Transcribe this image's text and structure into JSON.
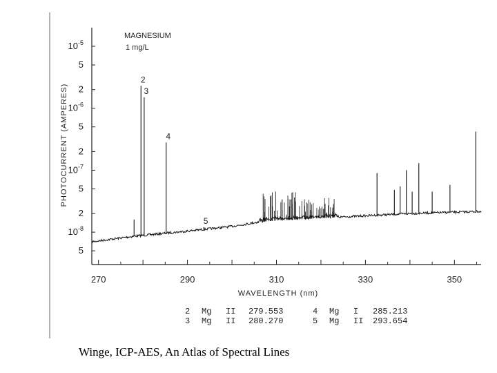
{
  "caption": "Winge, ICP-AES, An Atlas of Spectral Lines",
  "chart_data": {
    "type": "line",
    "title": "",
    "annotation": [
      "MAGNESIUM",
      "1 mg/L"
    ],
    "xlabel": "WAVELENGTH (nm)",
    "ylabel": "PHOTOCURRENT (AMPERES)",
    "xlim": [
      268.5,
      356
    ],
    "ylim": [
      3e-09,
      2e-05
    ],
    "yscale": "log",
    "x_ticks": [
      270,
      290,
      310,
      330,
      350
    ],
    "y_tick_labels": [
      {
        "value": 1e-05,
        "base": "10",
        "exp": "-5"
      },
      {
        "value": 5e-06,
        "base": "5",
        "exp": ""
      },
      {
        "value": 2e-06,
        "base": "2",
        "exp": ""
      },
      {
        "value": 1e-06,
        "base": "10",
        "exp": "-6"
      },
      {
        "value": 5e-07,
        "base": "5",
        "exp": ""
      },
      {
        "value": 2e-07,
        "base": "2",
        "exp": ""
      },
      {
        "value": 1e-07,
        "base": "10",
        "exp": "-7"
      },
      {
        "value": 5e-08,
        "base": "5",
        "exp": ""
      },
      {
        "value": 2e-08,
        "base": "2",
        "exp": ""
      },
      {
        "value": 1e-08,
        "base": "10",
        "exp": "-8"
      },
      {
        "value": 5e-09,
        "base": "5",
        "exp": ""
      }
    ],
    "background": [
      [
        268.5,
        7e-09
      ],
      [
        278,
        8.6e-09
      ],
      [
        290,
        1.04e-08
      ],
      [
        300,
        1.24e-08
      ],
      [
        306,
        1.46e-08
      ],
      [
        310,
        1.54e-08
      ],
      [
        320,
        1.68e-08
      ],
      [
        330,
        1.84e-08
      ],
      [
        340,
        2e-08
      ],
      [
        350,
        2.1e-08
      ],
      [
        356,
        2.16e-08
      ]
    ],
    "peaks": [
      {
        "x": 278.0,
        "y": 1.6e-08
      },
      {
        "x": 279.553,
        "y": 2.3e-06,
        "label": "2"
      },
      {
        "x": 280.27,
        "y": 1.5e-06,
        "label": "3"
      },
      {
        "x": 285.213,
        "y": 2.8e-07,
        "label": "4"
      },
      {
        "x": 293.654,
        "y": 1.2e-08,
        "label": "5"
      },
      {
        "x": 332.6,
        "y": 9e-08
      },
      {
        "x": 336.5,
        "y": 4.8e-08
      },
      {
        "x": 337.8,
        "y": 5.5e-08
      },
      {
        "x": 339.2,
        "y": 1e-07
      },
      {
        "x": 340.5,
        "y": 4.5e-08
      },
      {
        "x": 342.0,
        "y": 1.3e-07
      },
      {
        "x": 345.0,
        "y": 4.5e-08
      },
      {
        "x": 349.0,
        "y": 5.8e-08
      },
      {
        "x": 354.8,
        "y": 4.2e-07
      }
    ],
    "line_table": [
      {
        "num": "2",
        "element": "Mg",
        "ion": "II",
        "wavelength": "279.553"
      },
      {
        "num": "3",
        "element": "Mg",
        "ion": "II",
        "wavelength": "280.270"
      },
      {
        "num": "4",
        "element": "Mg",
        "ion": "I",
        "wavelength": "285.213"
      },
      {
        "num": "5",
        "element": "Mg",
        "ion": "II",
        "wavelength": "293.654"
      }
    ]
  }
}
